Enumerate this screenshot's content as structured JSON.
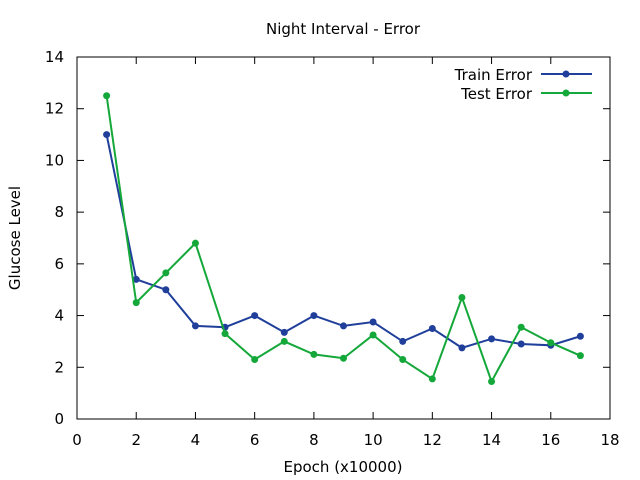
{
  "chart_data": {
    "type": "line",
    "title": "Night Interval - Error",
    "xlabel": "Epoch (x10000)",
    "ylabel": "Glucose Level",
    "xlim": [
      0,
      18
    ],
    "ylim": [
      0,
      14
    ],
    "xticks": [
      0,
      2,
      4,
      6,
      8,
      10,
      12,
      14,
      16,
      18
    ],
    "yticks": [
      0,
      2,
      4,
      6,
      8,
      10,
      12,
      14
    ],
    "x": [
      1,
      2,
      3,
      4,
      5,
      6,
      7,
      8,
      9,
      10,
      11,
      12,
      13,
      14,
      15,
      16,
      17
    ],
    "grid": false,
    "legend_position": "top-right",
    "series": [
      {
        "name": "Train Error",
        "color": "#1f3f9b",
        "values": [
          11.0,
          5.4,
          5.0,
          3.6,
          3.55,
          4.0,
          3.35,
          4.0,
          3.6,
          3.75,
          3.0,
          3.5,
          2.75,
          3.1,
          2.9,
          2.85,
          3.2
        ]
      },
      {
        "name": "Test Error",
        "color": "#14a83a",
        "values": [
          12.5,
          4.5,
          5.65,
          6.8,
          3.3,
          2.3,
          3.0,
          2.5,
          2.35,
          3.25,
          2.3,
          1.55,
          4.7,
          1.45,
          3.55,
          2.95,
          2.45
        ]
      }
    ]
  }
}
